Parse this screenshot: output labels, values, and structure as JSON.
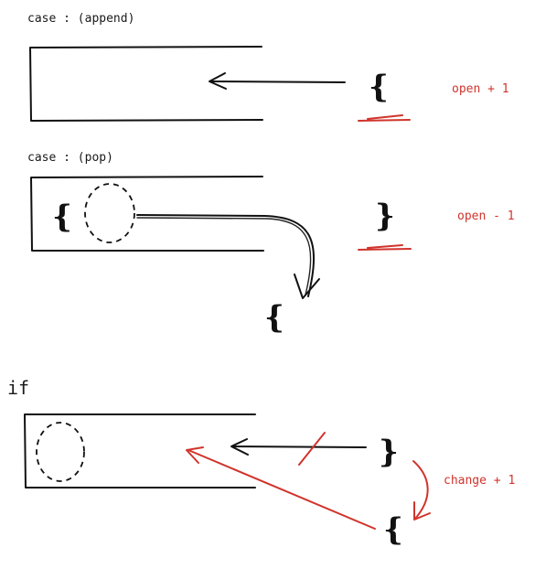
{
  "sections": {
    "append": {
      "title": "case : (append)",
      "incoming_brace": "{",
      "note": "open + 1"
    },
    "pop": {
      "title": "case : (pop)",
      "stack_brace": "{",
      "incoming_brace": "}",
      "popped_brace": "{",
      "note": "open - 1"
    },
    "if_case": {
      "title": "if",
      "incoming_brace": "}",
      "changed_brace": "{",
      "note": "change + 1"
    }
  },
  "colors": {
    "ink": "#111111",
    "accent_red": "#d0342c"
  }
}
